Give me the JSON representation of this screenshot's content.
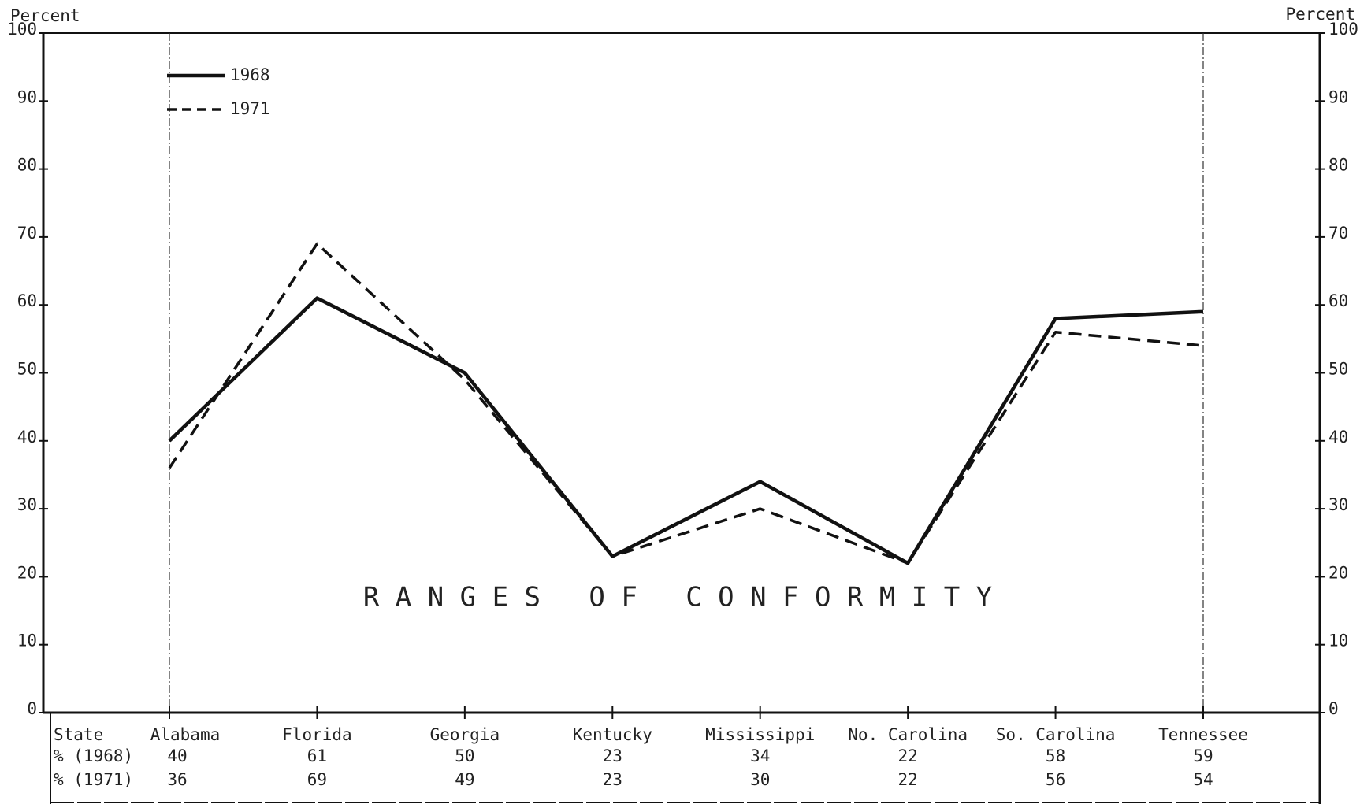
{
  "chart_data": {
    "type": "line",
    "y_label": "Percent",
    "y2_label": "Percent",
    "annotation": "R A N G E S   O F   C O N F O R M I T Y",
    "categories": [
      "Alabama",
      "Florida",
      "Georgia",
      "Kentucky",
      "Mississippi",
      "No. Carolina",
      "So. Carolina",
      "Tennessee"
    ],
    "row_labels": [
      "State",
      "% (1968)",
      "% (1971)"
    ],
    "series": [
      {
        "name": "1968",
        "color": "#111111",
        "style": "solid",
        "values": [
          40,
          61,
          50,
          23,
          34,
          22,
          58,
          59
        ]
      },
      {
        "name": "1971",
        "color": "#111111",
        "style": "dashed",
        "values": [
          36,
          69,
          49,
          23,
          30,
          22,
          56,
          54
        ]
      }
    ],
    "ylim": [
      0,
      100
    ],
    "yticks": [
      0,
      10,
      20,
      30,
      40,
      50,
      60,
      70,
      80,
      90,
      100
    ],
    "y2lim": [
      0,
      100
    ],
    "y2ticks": [
      0,
      10,
      20,
      30,
      40,
      50,
      60,
      70,
      80,
      90,
      100
    ],
    "legend": "upper left"
  }
}
